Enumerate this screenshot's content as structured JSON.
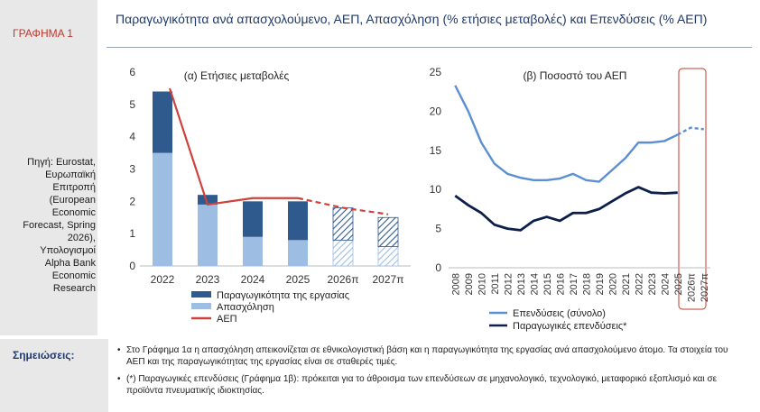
{
  "sidebar": {
    "label": "ΓΡΑΦΗΜΑ 1",
    "source": "Πηγή: Eurostat,\nΕυρωπαϊκή\nΕπιτροπή\n(European\nEconomic\nForecast, Spring\n2026),\nΥπολογισμοί\nAlpha Bank\nEconomic\nResearch"
  },
  "title": "Παραγωγικότητα ανά απασχολούμενο, ΑΕΠ, Απασχόληση (% ετήσιες μεταβολές) και Επενδύσεις (% ΑΕΠ)",
  "notes": {
    "heading": "Σημειώσεις:",
    "items": [
      "Στο Γράφημα 1α η απασχόληση απεικονίζεται σε εθνικολογιστική βάση και η παραγωγικότητα της εργασίας ανά απασχολούμενο άτομο. Τα στοιχεία του ΑΕΠ και της παραγωγικότητας της εργασίας είναι σε σταθερές τιμές.",
      "(*) Παραγωγικές επενδύσεις (Γράφημα 1β): πρόκειται για το άθροισμα των επενδύσεων σε μηχανολογικό, τεχνολογικό, μεταφορικό εξοπλισμό και σε προϊόντα πνευματικής ιδιοκτησίας."
    ]
  },
  "chart_data": [
    {
      "type": "bar",
      "title": "(α) Ετήσιες μεταβολές",
      "categories": [
        "2022",
        "2023",
        "2024",
        "2025",
        "2026π",
        "2027π"
      ],
      "forecast_from_index": 4,
      "ylim": [
        0,
        6
      ],
      "yticks": [
        "0",
        "1",
        "2",
        "3",
        "4",
        "5",
        "6"
      ],
      "stacked_series": [
        {
          "name": "Παραγωγικότητα της εργασίας",
          "color": "#2e5a8e",
          "values": [
            1.9,
            0.3,
            1.1,
            1.2,
            1.0,
            0.9
          ]
        },
        {
          "name": "Απασχόληση",
          "color": "#9dbde3",
          "values": [
            3.5,
            1.9,
            0.9,
            0.8,
            0.8,
            0.6
          ]
        }
      ],
      "line_series": {
        "name": "ΑΕΠ",
        "color": "#d0413c",
        "values": [
          5.5,
          1.9,
          2.1,
          2.1,
          1.8,
          1.6
        ]
      },
      "legend": [
        "Παραγωγικότητα της εργασίας",
        "Απασχόληση",
        "ΑΕΠ"
      ],
      "legend_position": "bottom"
    },
    {
      "type": "line",
      "title": "(β) Ποσοστό του ΑΕΠ",
      "x": [
        "2008",
        "2009",
        "2010",
        "2011",
        "2012",
        "2013",
        "2014",
        "2015",
        "2016",
        "2017",
        "2018",
        "2019",
        "2020",
        "2021",
        "2022",
        "2023",
        "2024",
        "2025",
        "2026π",
        "2027π"
      ],
      "ylim": [
        0,
        25
      ],
      "yticks": [
        "0",
        "5",
        "10",
        "15",
        "20",
        "25"
      ],
      "series": [
        {
          "name": "Επενδύσεις (σύνολο)",
          "color": "#5b8fcf",
          "values": [
            23.3,
            20.0,
            16.0,
            13.3,
            12.0,
            11.5,
            11.2,
            11.2,
            11.4,
            12.0,
            11.2,
            11.0,
            12.5,
            14.0,
            16.0,
            16.0,
            16.2,
            17.0,
            17.9,
            17.7
          ]
        },
        {
          "name": "Παραγωγικές επενδύσεις*",
          "color": "#0b1f4a",
          "values": [
            9.2,
            8.0,
            7.0,
            5.5,
            5.0,
            4.8,
            6.0,
            6.5,
            6.0,
            7.0,
            7.0,
            7.5,
            8.5,
            9.5,
            10.3,
            9.6,
            9.5,
            9.6,
            null,
            null
          ]
        }
      ],
      "forecast_from_index": 18,
      "legend_position": "bottom"
    }
  ]
}
